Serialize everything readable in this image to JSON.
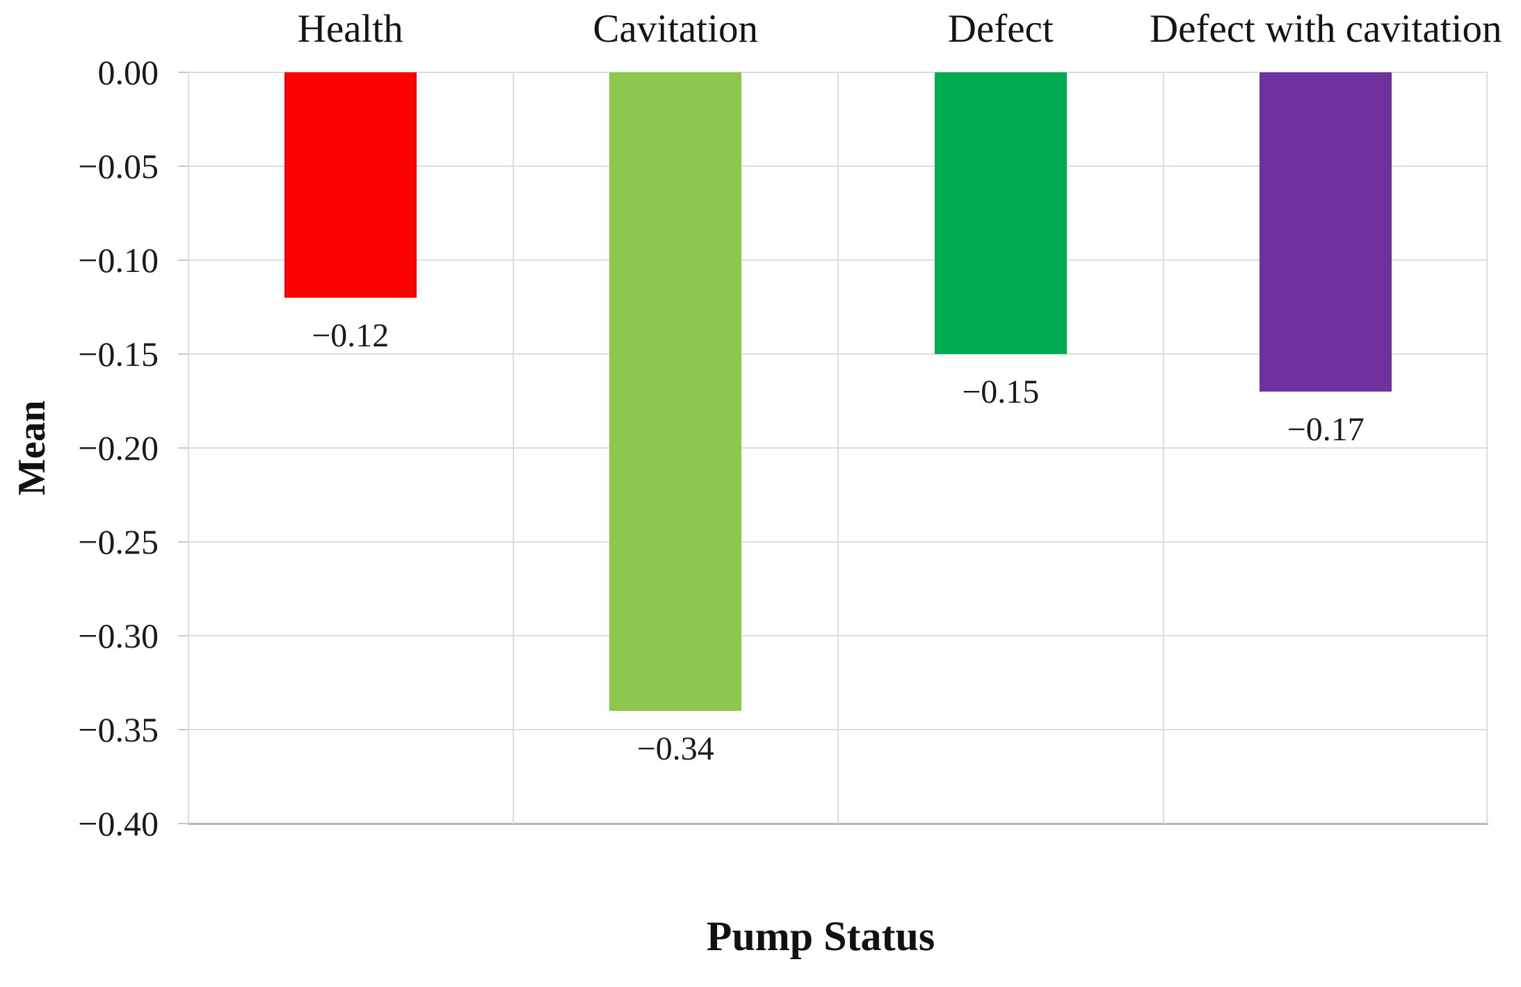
{
  "chart_data": {
    "type": "bar",
    "title": "",
    "categories": [
      "Health",
      "Cavitation",
      "Defect",
      "Defect with cavitation"
    ],
    "values": [
      -0.12,
      -0.34,
      -0.15,
      -0.17
    ],
    "data_labels": [
      "−0.12",
      "−0.34",
      "−0.15",
      "−0.17"
    ],
    "bar_colors": [
      "#fb0303",
      "#8cc84e",
      "#00ac51",
      "#7030a0"
    ],
    "xlabel": "Pump Status",
    "ylabel": "Mean",
    "ylim": [
      -0.4,
      0.0
    ],
    "ytick_step": 0.05,
    "ytick_labels": [
      "0.00",
      "−0.05",
      "−0.10",
      "−0.15",
      "−0.20",
      "−0.25",
      "−0.30",
      "−0.35",
      "−0.40"
    ],
    "category_label_position": "above-plot",
    "data_label_position": "below-bar",
    "legend": "none",
    "grid": true,
    "gridline_color": "#dcdcdc",
    "axis_line_color": "#b5b5b5",
    "text_color": "#1a1a1a",
    "background_color": "#ffffff"
  }
}
